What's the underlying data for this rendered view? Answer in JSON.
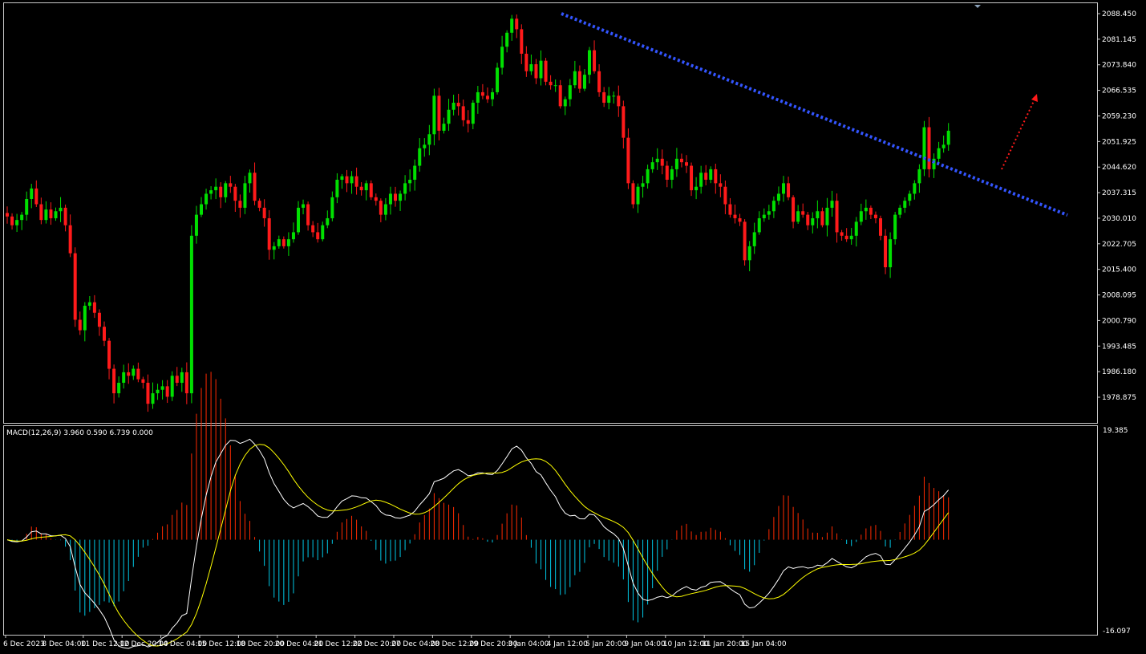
{
  "chart_data": {
    "type": "candlestick",
    "instrument": "",
    "price_axis": {
      "ticks": [
        "2088.450",
        "2081.145",
        "2073.840",
        "2066.535",
        "2059.230",
        "2051.925",
        "2044.620",
        "2037.315",
        "2030.010",
        "2022.705",
        "2015.400",
        "2008.095",
        "2000.790",
        "1993.485",
        "1986.180",
        "1978.875"
      ],
      "range": [
        1973.5,
        2091.8
      ]
    },
    "time_axis": {
      "ticks": [
        "6 Dec 2023",
        "8 Dec 04:00",
        "11 Dec 12:00",
        "12 Dec 20:00",
        "14 Dec 04:00",
        "15 Dec 12:00",
        "18 Dec 20:00",
        "20 Dec 04:00",
        "21 Dec 12:00",
        "22 Dec 20:00",
        "27 Dec 04:00",
        "28 Dec 12:00",
        "29 Dec 20:00",
        "3 Jan 04:00",
        "4 Jan 12:00",
        "5 Jan 20:00",
        "9 Jan 04:00",
        "10 Jan 12:00",
        "11 Jan 20:00",
        "15 Jan 04:00"
      ],
      "bars_per_label": 8,
      "bar_count": 203
    },
    "closes": [
      2030.5,
      2028,
      2029.5,
      2031,
      2035.5,
      2038.5,
      2034,
      2029.5,
      2032.5,
      2030,
      2032,
      2033,
      2028,
      2020,
      2001,
      1998,
      2005,
      2006,
      2003,
      1999,
      1995,
      1987,
      1980,
      1983,
      1986,
      1985,
      1987,
      1984,
      1983,
      1977,
      1980,
      1981,
      1982,
      1979,
      1985,
      1983,
      1986,
      1980,
      2025,
      2031,
      2034,
      2037,
      2038,
      2039,
      2036,
      2040,
      2039,
      2035,
      2033,
      2040,
      2043,
      2035,
      2033,
      2030,
      2021,
      2022,
      2024,
      2022,
      2024,
      2026,
      2033,
      2034,
      2028,
      2026,
      2024,
      2028,
      2030,
      2036,
      2041,
      2042,
      2040,
      2042,
      2039,
      2038,
      2040,
      2036,
      2035,
      2031,
      2034,
      2037,
      2035,
      2037,
      2040,
      2041,
      2045,
      2050,
      2051,
      2054,
      2065,
      2055,
      2057,
      2061,
      2063,
      2062,
      2058,
      2057,
      2063,
      2066,
      2065,
      2064,
      2066,
      2073,
      2079,
      2083,
      2087,
      2084,
      2077,
      2072,
      2074,
      2070,
      2075,
      2069,
      2068,
      2068,
      2062,
      2064,
      2068,
      2072,
      2067,
      2071,
      2078,
      2072,
      2066,
      2063,
      2065,
      2065,
      2062,
      2053,
      2040,
      2034,
      2039,
      2040,
      2044,
      2046,
      2047,
      2045,
      2041,
      2044,
      2047,
      2046,
      2045,
      2038,
      2039,
      2043,
      2041,
      2044,
      2040,
      2039,
      2034,
      2031,
      2030,
      2029,
      2018,
      2022,
      2026,
      2030,
      2031,
      2032,
      2035,
      2037,
      2040,
      2036,
      2029,
      2032,
      2031,
      2028,
      2030,
      2032,
      2028,
      2033,
      2035,
      2026,
      2025,
      2024,
      2025,
      2029,
      2032,
      2033,
      2031,
      2030,
      2025,
      2016,
      2024,
      2031,
      2033,
      2035,
      2037,
      2040,
      2044,
      2056,
      2044,
      2047,
      2050,
      2051,
      2055
    ],
    "trendline_label": "",
    "macd": {
      "label": "MACD(12,26,9) 3.960 0.590 6.739 0.000",
      "axis_ticks": [
        "19.385",
        "-16.097"
      ],
      "range": [
        -16.097,
        19.385
      ],
      "main_color": "#ffffff",
      "signal_color": "#ffff00",
      "hist_up_color": "#ff2a00",
      "hist_down_color": "#00c8e6"
    },
    "colors": {
      "background": "#000000",
      "bull": "#00e000",
      "bear": "#ff1a1a",
      "trendline": "#3355ff",
      "arrow": "#ff1a1a",
      "border": "#c8c8c8"
    }
  }
}
